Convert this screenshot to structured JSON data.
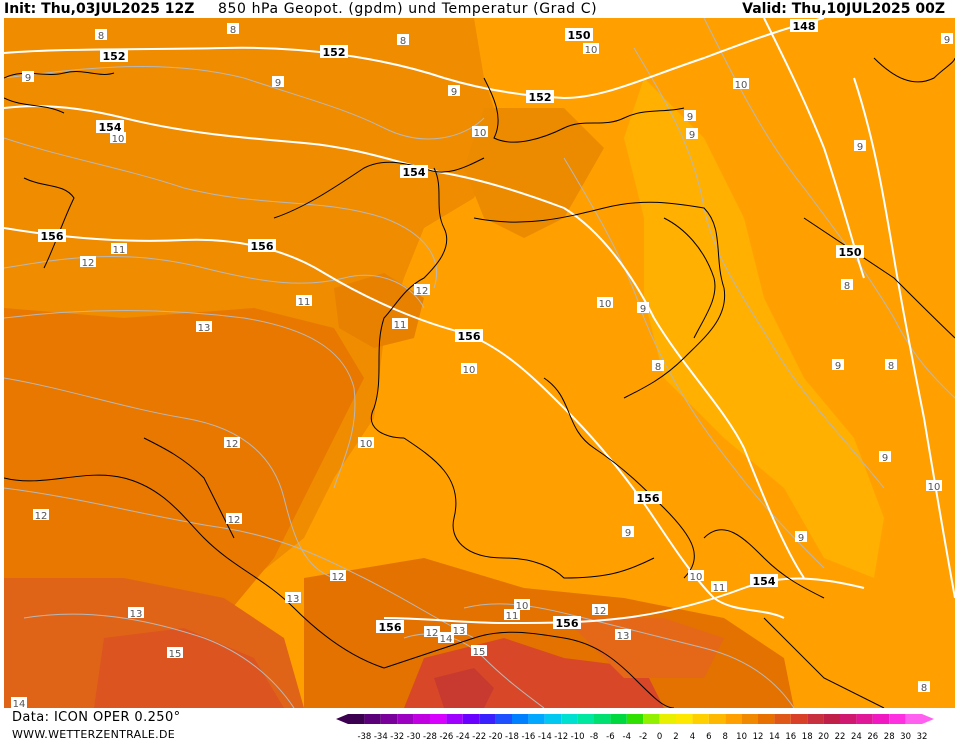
{
  "header": {
    "init": "Init: Thu,03JUL2025 12Z",
    "title": "850 hPa Geopot. (gpdm) und Temperatur (Grad C)",
    "valid": "Valid: Thu,10JUL2025 00Z"
  },
  "footer": {
    "source": "Data: ICON OPER 0.250°",
    "website": "WWW.WETTERZENTRALE.DE"
  },
  "legend": {
    "ticks": [
      "-38",
      "-34",
      "-32",
      "-30",
      "-28",
      "-26",
      "-24",
      "-22",
      "-20",
      "-18",
      "-16",
      "-14",
      "-12",
      "-10",
      "-8",
      "-6",
      "-4",
      "-2",
      "0",
      "2",
      "4",
      "6",
      "8",
      "10",
      "12",
      "14",
      "16",
      "18",
      "20",
      "22",
      "24",
      "26",
      "28",
      "30",
      "32"
    ],
    "colors": [
      "#3b0050",
      "#5a0078",
      "#7a009c",
      "#9c00c0",
      "#c000e0",
      "#d800ff",
      "#a000ff",
      "#6a00ff",
      "#3a20ff",
      "#1e50ff",
      "#0080ff",
      "#00a8ff",
      "#00c8f0",
      "#00e0d0",
      "#00e8a0",
      "#00e070",
      "#00d840",
      "#30e000",
      "#90f000",
      "#e8f000",
      "#ffe800",
      "#ffd000",
      "#ffb800",
      "#ffa000",
      "#f08800",
      "#e87000",
      "#e05818",
      "#d84028",
      "#c83040",
      "#c02048",
      "#d01870",
      "#e01898",
      "#f018c0",
      "#ff30e0",
      "#ff60f0"
    ]
  },
  "geopotential_labels": [
    {
      "text": "152"
    },
    {
      "text": "152"
    },
    {
      "text": "150"
    },
    {
      "text": "148"
    },
    {
      "text": "152"
    },
    {
      "text": "154"
    },
    {
      "text": "154"
    },
    {
      "text": "156"
    },
    {
      "text": "156"
    },
    {
      "text": "150"
    },
    {
      "text": "156"
    },
    {
      "text": "156"
    },
    {
      "text": "154"
    },
    {
      "text": "156"
    },
    {
      "text": "156"
    }
  ],
  "temperature_labels": [
    {
      "text": "8"
    },
    {
      "text": "8"
    },
    {
      "text": "8"
    },
    {
      "text": "9"
    },
    {
      "text": "9"
    },
    {
      "text": "9"
    },
    {
      "text": "10"
    },
    {
      "text": "10"
    },
    {
      "text": "10"
    },
    {
      "text": "10"
    },
    {
      "text": "9"
    },
    {
      "text": "9"
    },
    {
      "text": "11"
    },
    {
      "text": "12"
    },
    {
      "text": "11"
    },
    {
      "text": "12"
    },
    {
      "text": "11"
    },
    {
      "text": "13"
    },
    {
      "text": "10"
    },
    {
      "text": "9"
    },
    {
      "text": "9"
    },
    {
      "text": "8"
    },
    {
      "text": "8"
    },
    {
      "text": "9"
    },
    {
      "text": "10"
    },
    {
      "text": "12"
    },
    {
      "text": "10"
    },
    {
      "text": "12"
    },
    {
      "text": "12"
    },
    {
      "text": "9"
    },
    {
      "text": "9"
    },
    {
      "text": "12"
    },
    {
      "text": "13"
    },
    {
      "text": "13"
    },
    {
      "text": "10"
    },
    {
      "text": "11"
    },
    {
      "text": "10"
    },
    {
      "text": "11"
    },
    {
      "text": "12"
    },
    {
      "text": "13"
    },
    {
      "text": "15"
    },
    {
      "text": "15"
    },
    {
      "text": "12"
    },
    {
      "text": "13"
    },
    {
      "text": "14"
    },
    {
      "text": "14"
    },
    {
      "text": "8"
    },
    {
      "text": "10"
    },
    {
      "text": "9"
    },
    {
      "text": "9"
    },
    {
      "text": "8"
    }
  ]
}
